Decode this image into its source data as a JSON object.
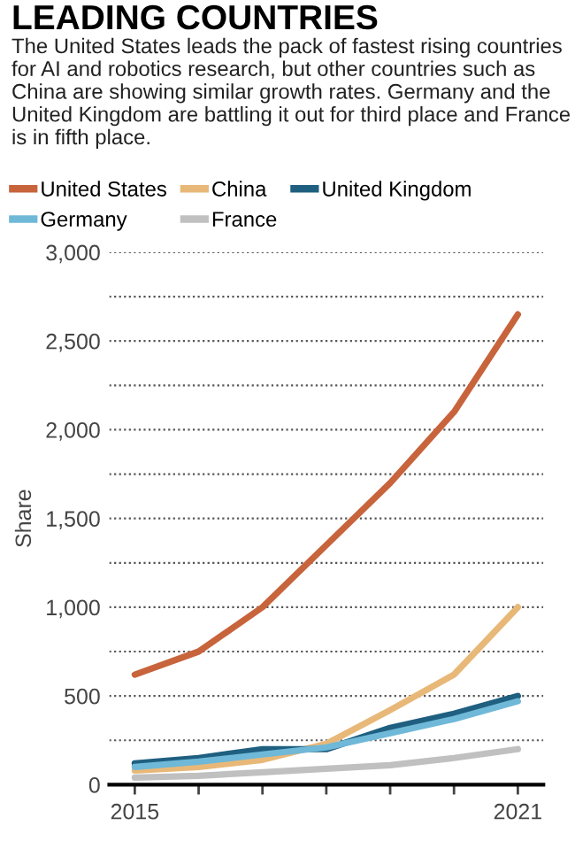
{
  "chart_data": {
    "type": "line",
    "title": "LEADING COUNTRIES",
    "subtitle": "The United States leads the pack of fastest rising countries for AI and robotics research, but other countries such as China are showing similar growth rates. Germany and the United Kingdom are battling it out for third place and France is in fifth place.",
    "ylabel": "Share",
    "x": [
      2015,
      2016,
      2017,
      2018,
      2019,
      2020,
      2021
    ],
    "series": [
      {
        "name": "United States",
        "color": "#c8643c",
        "values": [
          620,
          750,
          1000,
          1350,
          1700,
          2100,
          2650
        ]
      },
      {
        "name": "China",
        "color": "#e8b878",
        "values": [
          80,
          100,
          140,
          230,
          420,
          620,
          1000
        ]
      },
      {
        "name": "United Kingdom",
        "color": "#1f5f80",
        "values": [
          120,
          150,
          200,
          200,
          320,
          400,
          500
        ]
      },
      {
        "name": "Germany",
        "color": "#6fb8d8",
        "values": [
          100,
          130,
          170,
          210,
          290,
          370,
          470
        ]
      },
      {
        "name": "France",
        "color": "#c0c0c0",
        "values": [
          40,
          50,
          70,
          90,
          110,
          150,
          200
        ]
      }
    ],
    "xlim": [
      2014.6,
      2021.4
    ],
    "xticks": [
      2015,
      {
        "value": 2016,
        "label": null
      },
      {
        "value": 2017,
        "label": null
      },
      {
        "value": 2018,
        "label": null
      },
      {
        "value": 2019,
        "label": null
      },
      {
        "value": 2020,
        "label": null
      },
      2021
    ],
    "ylim": [
      0,
      3000
    ],
    "yticks": [
      0,
      {
        "value": 250,
        "label": null
      },
      500,
      {
        "value": 750,
        "label": null
      },
      {
        "value": 1000,
        "label": "1,000"
      },
      {
        "value": 1250,
        "label": null
      },
      {
        "value": 1500,
        "label": "1,500"
      },
      {
        "value": 1750,
        "label": null
      },
      {
        "value": 2000,
        "label": "2,000"
      },
      {
        "value": 2250,
        "label": null
      },
      {
        "value": 2500,
        "label": "2,500"
      },
      {
        "value": 2750,
        "label": null
      },
      {
        "value": 3000,
        "label": "3,000"
      }
    ],
    "grid": "y",
    "legend": "top",
    "marker": "none",
    "line_style": "solid"
  }
}
